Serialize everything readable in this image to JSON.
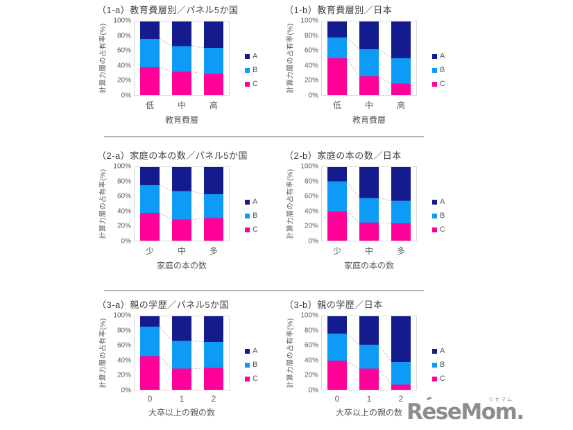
{
  "page": {
    "background": "#ffffff"
  },
  "colors": {
    "series_A": "#141b8c",
    "series_B": "#0d9bf5",
    "series_C": "#ff0099",
    "axis_text": "#595959",
    "title_text": "#404040",
    "dashed_connector": "#c4c4c4",
    "plot_border": "#d9d9d9",
    "row_separator": "#a9a9a9",
    "logo_gray": "#8d8d8d"
  },
  "chart_data": [
    {
      "id": "1-a",
      "type": "bar",
      "stacked": true,
      "percent": true,
      "title": "（1-a）教育費層別／パネル5か国",
      "xlabel": "教育費層",
      "ylabel": "計算力層の占有率(%)",
      "categories": [
        "低",
        "中",
        "高"
      ],
      "yticks": [
        "100%",
        "80%",
        "60%",
        "40%",
        "20%",
        "0%"
      ],
      "ylim": [
        0,
        100
      ],
      "legend_position": "right",
      "series": [
        {
          "name": "A",
          "color": "#141b8c",
          "values": [
            24,
            34,
            36
          ]
        },
        {
          "name": "B",
          "color": "#0d9bf5",
          "values": [
            38,
            34,
            35
          ]
        },
        {
          "name": "C",
          "color": "#ff0099",
          "values": [
            38,
            32,
            29
          ]
        }
      ]
    },
    {
      "id": "1-b",
      "type": "bar",
      "stacked": true,
      "percent": true,
      "title": "（1-b）教育費層別／日本",
      "xlabel": "教育費層",
      "ylabel": "計算力層の占有率(%)",
      "categories": [
        "低",
        "中",
        "高"
      ],
      "yticks": [
        "100%",
        "80%",
        "60%",
        "40%",
        "20%",
        "0%"
      ],
      "ylim": [
        0,
        100
      ],
      "legend_position": "right",
      "series": [
        {
          "name": "A",
          "color": "#141b8c",
          "values": [
            22,
            38,
            50
          ]
        },
        {
          "name": "B",
          "color": "#0d9bf5",
          "values": [
            28,
            36,
            34
          ]
        },
        {
          "name": "C",
          "color": "#ff0099",
          "values": [
            50,
            26,
            16
          ]
        }
      ]
    },
    {
      "id": "2-a",
      "type": "bar",
      "stacked": true,
      "percent": true,
      "title": "（2-a）家庭の本の数／パネル5か国",
      "xlabel": "家庭の本の数",
      "ylabel": "計算力層の占有率(%)",
      "categories": [
        "少",
        "中",
        "多"
      ],
      "yticks": [
        "100%",
        "80%",
        "60%",
        "40%",
        "20%",
        "0%"
      ],
      "ylim": [
        0,
        100
      ],
      "legend_position": "right",
      "series": [
        {
          "name": "A",
          "color": "#141b8c",
          "values": [
            25,
            33,
            37
          ]
        },
        {
          "name": "B",
          "color": "#0d9bf5",
          "values": [
            37,
            38,
            32
          ]
        },
        {
          "name": "C",
          "color": "#ff0099",
          "values": [
            38,
            29,
            31
          ]
        }
      ]
    },
    {
      "id": "2-b",
      "type": "bar",
      "stacked": true,
      "percent": true,
      "title": "（2-b）家庭の本の数／日本",
      "xlabel": "家庭の本の数",
      "ylabel": "計算力層の占有率(%)",
      "categories": [
        "少",
        "中",
        "多"
      ],
      "yticks": [
        "100%",
        "80%",
        "60%",
        "40%",
        "20%",
        "0%"
      ],
      "ylim": [
        0,
        100
      ],
      "legend_position": "right",
      "series": [
        {
          "name": "A",
          "color": "#141b8c",
          "values": [
            20,
            42,
            46
          ]
        },
        {
          "name": "B",
          "color": "#0d9bf5",
          "values": [
            40,
            33,
            30
          ]
        },
        {
          "name": "C",
          "color": "#ff0099",
          "values": [
            40,
            25,
            24
          ]
        }
      ]
    },
    {
      "id": "3-a",
      "type": "bar",
      "stacked": true,
      "percent": true,
      "title": "（3-a）親の学歴／パネル5か国",
      "xlabel": "大卒以上の親の数",
      "ylabel": "計算力層の占有率(%)",
      "categories": [
        "0",
        "1",
        "2"
      ],
      "yticks": [
        "100%",
        "80%",
        "60%",
        "40%",
        "20%",
        "0%"
      ],
      "ylim": [
        0,
        100
      ],
      "legend_position": "right",
      "series": [
        {
          "name": "A",
          "color": "#141b8c",
          "values": [
            15,
            34,
            35
          ]
        },
        {
          "name": "B",
          "color": "#0d9bf5",
          "values": [
            39,
            37,
            35
          ]
        },
        {
          "name": "C",
          "color": "#ff0099",
          "values": [
            46,
            29,
            30
          ]
        }
      ]
    },
    {
      "id": "3-b",
      "type": "bar",
      "stacked": true,
      "percent": true,
      "title": "（3-b）親の学歴／日本",
      "xlabel": "大卒以上の親の数",
      "ylabel": "計算力層の占有率(%)",
      "categories": [
        "0",
        "1",
        "2"
      ],
      "yticks": [
        "100%",
        "80%",
        "60%",
        "40%",
        "20%",
        "0%"
      ],
      "ylim": [
        0,
        100
      ],
      "legend_position": "right",
      "series": [
        {
          "name": "A",
          "color": "#141b8c",
          "values": [
            24,
            39,
            62
          ]
        },
        {
          "name": "B",
          "color": "#0d9bf5",
          "values": [
            36,
            32,
            30
          ]
        },
        {
          "name": "C",
          "color": "#ff0099",
          "values": [
            40,
            29,
            8
          ]
        }
      ]
    }
  ],
  "logo": {
    "text": "ReseMom.",
    "ruby": "リセマム",
    "color": "#8d8d8d"
  }
}
